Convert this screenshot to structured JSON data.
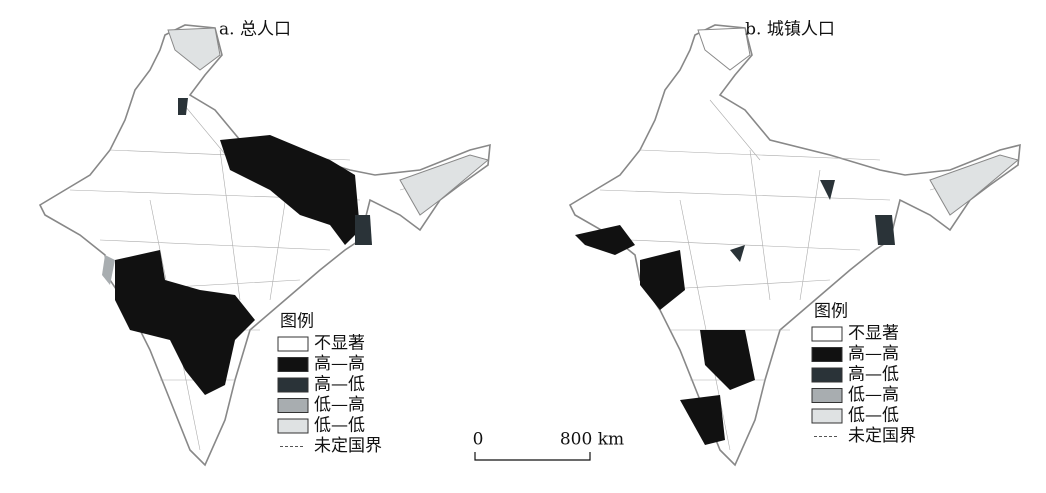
{
  "maps": [
    {
      "title": "a. 总人口",
      "legend": {
        "title": "图例",
        "items": [
          "不显著",
          "高—高",
          "高—低",
          "低—高",
          "低—低"
        ],
        "boundary": "未定国界"
      }
    },
    {
      "title": "b. 城镇人口",
      "legend": {
        "title": "图例",
        "items": [
          "不显著",
          "高—高",
          "高—低",
          "低—高",
          "低—低"
        ],
        "boundary": "未定国界"
      }
    }
  ],
  "scale_bar": {
    "start": "0",
    "end": "800 km"
  }
}
